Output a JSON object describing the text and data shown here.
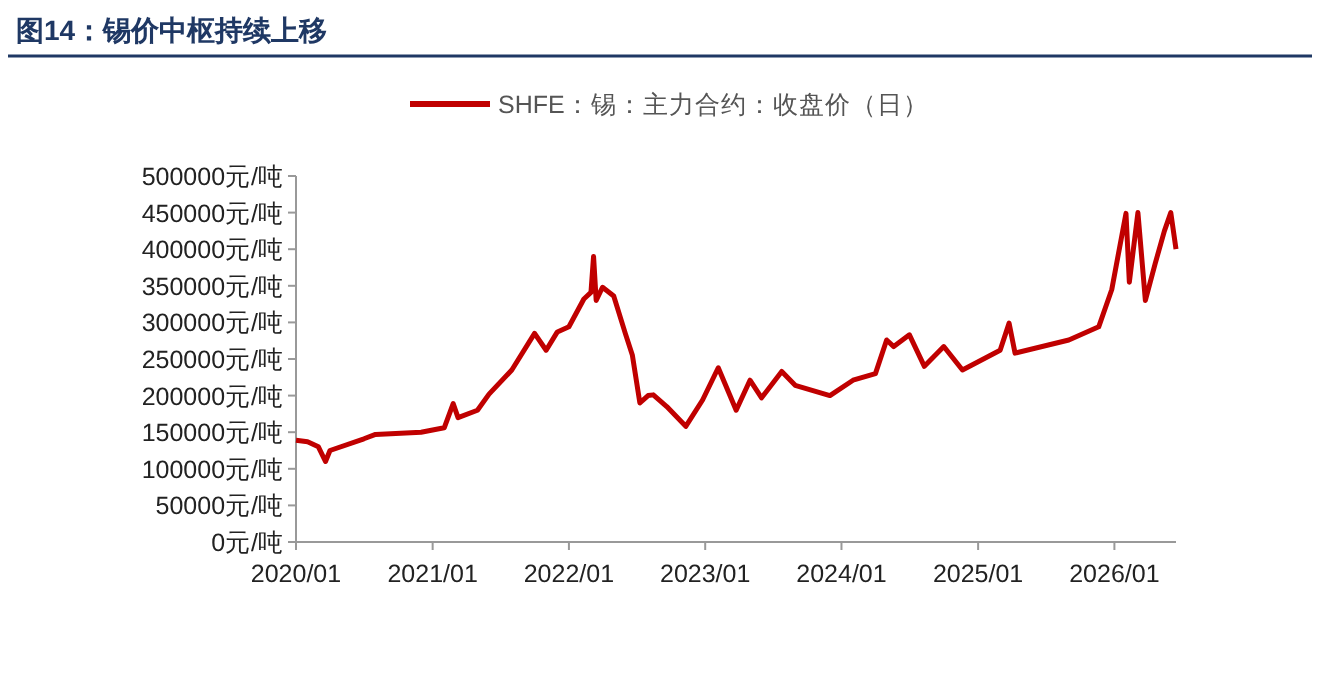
{
  "chart_data": {
    "type": "line",
    "title": "图14：锡价中枢持续上移",
    "x": [
      "2020-01-01",
      "2020-02-01",
      "2020-03-01",
      "2020-03-20",
      "2020-04-01",
      "2020-07-01",
      "2020-08-01",
      "2020-12-01",
      "2021-02-01",
      "2021-02-25",
      "2021-03-10",
      "2021-05-01",
      "2021-06-01",
      "2021-08-01",
      "2021-10-01",
      "2021-11-01",
      "2021-12-01",
      "2022-01-01",
      "2022-02-10",
      "2022-03-01",
      "2022-03-08",
      "2022-03-15",
      "2022-04-01",
      "2022-05-01",
      "2022-06-01",
      "2022-06-20",
      "2022-07-10",
      "2022-08-01",
      "2022-08-15",
      "2022-09-20",
      "2022-11-10",
      "2022-12-25",
      "2023-02-05",
      "2023-03-25",
      "2023-05-01",
      "2023-06-01",
      "2023-07-25",
      "2023-08-30",
      "2023-12-01",
      "2024-02-01",
      "2024-04-01",
      "2024-05-01",
      "2024-05-20",
      "2024-07-01",
      "2024-08-10",
      "2024-10-01",
      "2024-11-20",
      "2025-03-01",
      "2025-03-25",
      "2025-04-10",
      "2025-09-01",
      "2025-11-20",
      "2025-12-25",
      "2026-02-01",
      "2026-02-10",
      "2026-03-05",
      "2026-03-25",
      "2026-04-20",
      "2026-05-15",
      "2026-06-01",
      "2026-06-15"
    ],
    "series": [
      {
        "name": "SHFE：锡：主力合约：收盘价（日）",
        "color": "#c00000",
        "values": [
          139000,
          137000,
          130000,
          110000,
          125000,
          141000,
          147000,
          150000,
          156000,
          189000,
          170000,
          180000,
          202000,
          235000,
          285000,
          262000,
          287000,
          294000,
          332000,
          341000,
          390000,
          330000,
          348000,
          336000,
          285000,
          255000,
          190000,
          200000,
          201000,
          185000,
          158000,
          194000,
          238000,
          180000,
          221000,
          197000,
          233000,
          214000,
          200000,
          221000,
          230000,
          276000,
          267000,
          283000,
          240000,
          267000,
          235000,
          262000,
          299000,
          258000,
          276000,
          294000,
          345000,
          449000,
          355000,
          450000,
          330000,
          380000,
          425000,
          450000,
          400000
        ]
      }
    ],
    "xlim": [
      "2020-01-01",
      "2026-06-15"
    ],
    "xticks": [
      {
        "value": "2020-01-01",
        "label": "2020/01"
      },
      {
        "value": "2021-01-01",
        "label": "2021/01"
      },
      {
        "value": "2022-01-01",
        "label": "2022/01"
      },
      {
        "value": "2023-01-01",
        "label": "2023/01"
      },
      {
        "value": "2024-01-01",
        "label": "2024/01"
      },
      {
        "value": "2025-01-01",
        "label": "2025/01"
      },
      {
        "value": "2026-01-01",
        "label": "2026/01"
      }
    ],
    "ylim": [
      0,
      500000
    ],
    "yticks": [
      {
        "value": 0,
        "label": "0元/吨"
      },
      {
        "value": 50000,
        "label": "50000元/吨"
      },
      {
        "value": 100000,
        "label": "100000元/吨"
      },
      {
        "value": 150000,
        "label": "150000元/吨"
      },
      {
        "value": 200000,
        "label": "200000元/吨"
      },
      {
        "value": 250000,
        "label": "250000元/吨"
      },
      {
        "value": 300000,
        "label": "300000元/吨"
      },
      {
        "value": 350000,
        "label": "350000元/吨"
      },
      {
        "value": 400000,
        "label": "400000元/吨"
      },
      {
        "value": 450000,
        "label": "450000元/吨"
      },
      {
        "value": 500000,
        "label": "500000元/吨"
      }
    ],
    "grid": false,
    "legend": "top",
    "marker": "none",
    "line_style": "solid"
  }
}
